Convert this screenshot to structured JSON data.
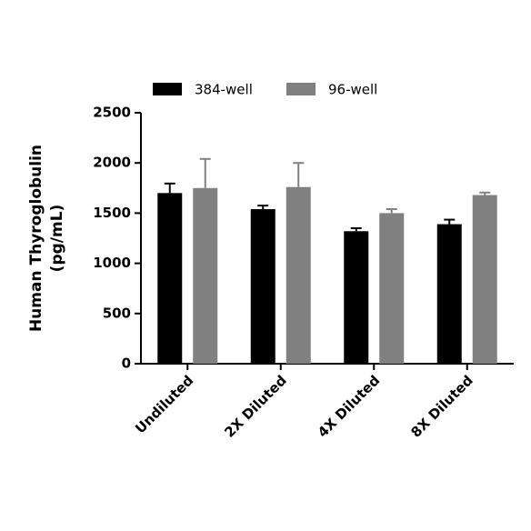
{
  "chart_data": {
    "type": "bar",
    "ylabel": [
      "Human Thyroglobulin",
      "(pg/mL)"
    ],
    "categories": [
      "Undiluted",
      "2X Diluted",
      "4X Diluted",
      "8X Diluted"
    ],
    "series": [
      {
        "name": "384-well",
        "color": "#000000",
        "values": [
          1700,
          1540,
          1320,
          1390
        ],
        "errors": [
          95,
          35,
          30,
          45
        ]
      },
      {
        "name": "96-well",
        "color": "#808080",
        "values": [
          1750,
          1760,
          1500,
          1680
        ],
        "errors": [
          290,
          240,
          40,
          25
        ]
      }
    ],
    "ylim": [
      0,
      2500
    ],
    "yticks": [
      0,
      500,
      1000,
      1500,
      2000,
      2500
    ]
  }
}
